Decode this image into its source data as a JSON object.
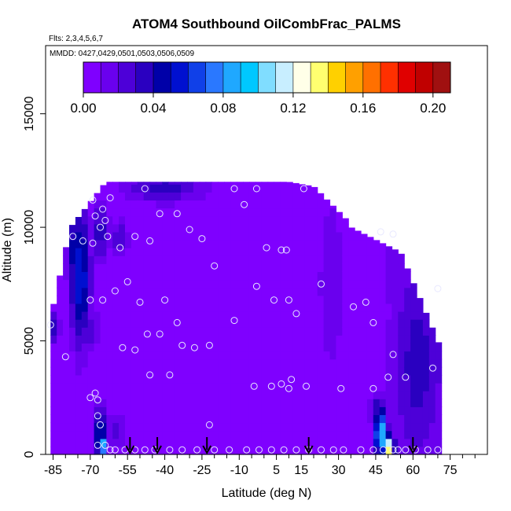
{
  "chart_data": {
    "type": "heatmap",
    "title": "ATOM4 Southbound OilCombFrac_PALMS",
    "flights_label": "Flts: 2,3,4,5,6,7",
    "mmdd_label": "MMDD: 0427,0429,0501,0503,0506,0509",
    "xlabel": "Latitude (deg N)",
    "ylabel": "Altitude (m)",
    "xlim": [
      -88,
      90
    ],
    "ylim": [
      0,
      18000
    ],
    "x_ticks": [
      -85,
      -70,
      -55,
      -40,
      -25,
      -10,
      5,
      15,
      30,
      45,
      60,
      75
    ],
    "x_tick_labels": [
      "-85",
      "-70",
      "-55",
      "-40",
      "-25",
      "-10",
      "5",
      "15",
      "30",
      "45",
      "60",
      "75"
    ],
    "x_minor_ticks": [
      -80,
      -75,
      -65,
      -60,
      -50,
      -45,
      -35,
      -30,
      -20,
      -15,
      -5,
      0,
      10,
      20,
      25,
      35,
      40,
      50,
      55,
      65,
      70,
      80,
      85
    ],
    "y_ticks": [
      0,
      5000,
      10000,
      15000
    ],
    "y_tick_labels": [
      "0",
      "5000",
      "10000",
      "15000"
    ],
    "colorbar": {
      "range": [
        0,
        0.21
      ],
      "tick_values": [
        0.0,
        0.04,
        0.08,
        0.12,
        0.16,
        0.2
      ],
      "tick_labels": [
        "0.00",
        "0.04",
        "0.08",
        "0.12",
        "0.16",
        "0.20"
      ],
      "colors": [
        "#7f00ff",
        "#6a00ee",
        "#4d00d8",
        "#2a00c0",
        "#0000a8",
        "#0010d0",
        "#1040e8",
        "#2a78ff",
        "#1fa8ff",
        "#00c8ff",
        "#80ddff",
        "#c8eeff",
        "#ffffe8",
        "#ffff70",
        "#ffd000",
        "#ffa000",
        "#ff7000",
        "#ff3000",
        "#e00000",
        "#c00000",
        "#a01010"
      ]
    },
    "background_value": 0.005,
    "hotspots": [
      {
        "lat": -74,
        "alt": 7800,
        "lat_sigma": 3.0,
        "alt_sigma": 2200,
        "value": 0.06
      },
      {
        "lat": -76,
        "alt": 9000,
        "lat_sigma": 2.5,
        "alt_sigma": 1200,
        "value": 0.05
      },
      {
        "lat": -72,
        "alt": 5500,
        "lat_sigma": 4.0,
        "alt_sigma": 800,
        "value": 0.03
      },
      {
        "lat": -66,
        "alt": 9800,
        "lat_sigma": 3.0,
        "alt_sigma": 900,
        "value": 0.035
      },
      {
        "lat": -58,
        "alt": 9500,
        "lat_sigma": 2.5,
        "alt_sigma": 600,
        "value": 0.03
      },
      {
        "lat": -66,
        "alt": 1000,
        "lat_sigma": 1.4,
        "alt_sigma": 900,
        "value": 0.07
      },
      {
        "lat": -65,
        "alt": 400,
        "lat_sigma": 1.0,
        "alt_sigma": 300,
        "value": 0.1
      },
      {
        "lat": -60,
        "alt": 1100,
        "lat_sigma": 3.0,
        "alt_sigma": 600,
        "value": 0.025
      },
      {
        "lat": -40,
        "alt": 11800,
        "lat_sigma": 12.0,
        "alt_sigma": 500,
        "value": 0.035
      },
      {
        "lat": -85,
        "alt": 5600,
        "lat_sigma": 2.0,
        "alt_sigma": 500,
        "value": 0.035
      },
      {
        "lat": 47,
        "alt": 1000,
        "lat_sigma": 2.0,
        "alt_sigma": 800,
        "value": 0.09
      },
      {
        "lat": 49,
        "alt": 500,
        "lat_sigma": 1.2,
        "alt_sigma": 350,
        "value": 0.15
      },
      {
        "lat": 51,
        "alt": 300,
        "lat_sigma": 1.0,
        "alt_sigma": 300,
        "value": 0.2
      },
      {
        "lat": 45,
        "alt": 1900,
        "lat_sigma": 1.5,
        "alt_sigma": 600,
        "value": 0.04
      },
      {
        "lat": 62,
        "alt": 4000,
        "lat_sigma": 8.0,
        "alt_sigma": 3500,
        "value": 0.035
      },
      {
        "lat": 68,
        "alt": 7000,
        "lat_sigma": 4.0,
        "alt_sigma": 3000,
        "value": 0.03
      },
      {
        "lat": 27,
        "alt": 7500,
        "lat_sigma": 4.0,
        "alt_sigma": 3000,
        "value": 0.018
      },
      {
        "lat": 55,
        "alt": 8500,
        "lat_sigma": 5.0,
        "alt_sigma": 2500,
        "value": 0.02
      }
    ],
    "sample_points": [
      [
        -69,
        11200
      ],
      [
        -68,
        10500
      ],
      [
        -66,
        10000
      ],
      [
        -65,
        10800
      ],
      [
        -64,
        10300
      ],
      [
        -63,
        9600
      ],
      [
        -62,
        11300
      ],
      [
        -77,
        9600
      ],
      [
        -73,
        9400
      ],
      [
        -69,
        9300
      ],
      [
        -58,
        9100
      ],
      [
        -52,
        9600
      ],
      [
        -46,
        9400
      ],
      [
        -48,
        11700
      ],
      [
        -42,
        10600
      ],
      [
        -35,
        10600
      ],
      [
        -30,
        9900
      ],
      [
        -25,
        9500
      ],
      [
        -20,
        8300
      ],
      [
        -12,
        11700
      ],
      [
        -8,
        11000
      ],
      [
        -3,
        11700
      ],
      [
        16,
        11700
      ],
      [
        1,
        9100
      ],
      [
        7,
        9000
      ],
      [
        9,
        9000
      ],
      [
        -70,
        6800
      ],
      [
        -65,
        6800
      ],
      [
        -60,
        7200
      ],
      [
        -55,
        7600
      ],
      [
        -50,
        6700
      ],
      [
        -47,
        5300
      ],
      [
        -42,
        5300
      ],
      [
        -40,
        6800
      ],
      [
        -35,
        5800
      ],
      [
        -33,
        4800
      ],
      [
        -28,
        4700
      ],
      [
        -22,
        4800
      ],
      [
        -12,
        5900
      ],
      [
        -3,
        7400
      ],
      [
        4,
        6800
      ],
      [
        10,
        6800
      ],
      [
        13,
        6200
      ],
      [
        23,
        7500
      ],
      [
        36,
        6500
      ],
      [
        41,
        6700
      ],
      [
        44,
        5800
      ],
      [
        47,
        9800
      ],
      [
        52,
        9700
      ],
      [
        52,
        4400
      ],
      [
        50,
        3400
      ],
      [
        57,
        3400
      ],
      [
        68,
        3800
      ],
      [
        70,
        7300
      ],
      [
        -80,
        4300
      ],
      [
        -57,
        4700
      ],
      [
        -52,
        4600
      ],
      [
        -46,
        3500
      ],
      [
        -38,
        3500
      ],
      [
        -22,
        1300
      ],
      [
        -4,
        3000
      ],
      [
        3,
        3000
      ],
      [
        7,
        3100
      ],
      [
        10,
        2900
      ],
      [
        11,
        3300
      ],
      [
        17,
        3000
      ],
      [
        31,
        2900
      ],
      [
        44,
        2900
      ],
      [
        -70,
        2500
      ],
      [
        -68,
        2700
      ],
      [
        -67,
        2400
      ],
      [
        -67,
        1700
      ],
      [
        -66,
        1300
      ],
      [
        -67,
        400
      ],
      [
        -64,
        400
      ],
      [
        -62,
        200
      ],
      [
        -60,
        200
      ],
      [
        -56,
        200
      ],
      [
        -52,
        200
      ],
      [
        -48,
        200
      ],
      [
        -44,
        200
      ],
      [
        -38,
        200
      ],
      [
        -33,
        200
      ],
      [
        -27,
        200
      ],
      [
        -20,
        200
      ],
      [
        -14,
        200
      ],
      [
        -7,
        200
      ],
      [
        -2,
        200
      ],
      [
        3,
        200
      ],
      [
        8,
        200
      ],
      [
        13,
        200
      ],
      [
        18,
        200
      ],
      [
        23,
        200
      ],
      [
        28,
        200
      ],
      [
        32,
        200
      ],
      [
        39,
        200
      ],
      [
        44,
        200
      ],
      [
        48,
        200
      ],
      [
        52,
        200
      ],
      [
        54,
        200
      ],
      [
        57,
        200
      ],
      [
        61,
        200
      ],
      [
        66,
        200
      ],
      [
        70,
        200
      ],
      [
        -86,
        5700
      ]
    ],
    "flight_turn_arrows": [
      -54,
      -43,
      -23,
      18,
      60
    ],
    "axis_margin_note": ""
  }
}
